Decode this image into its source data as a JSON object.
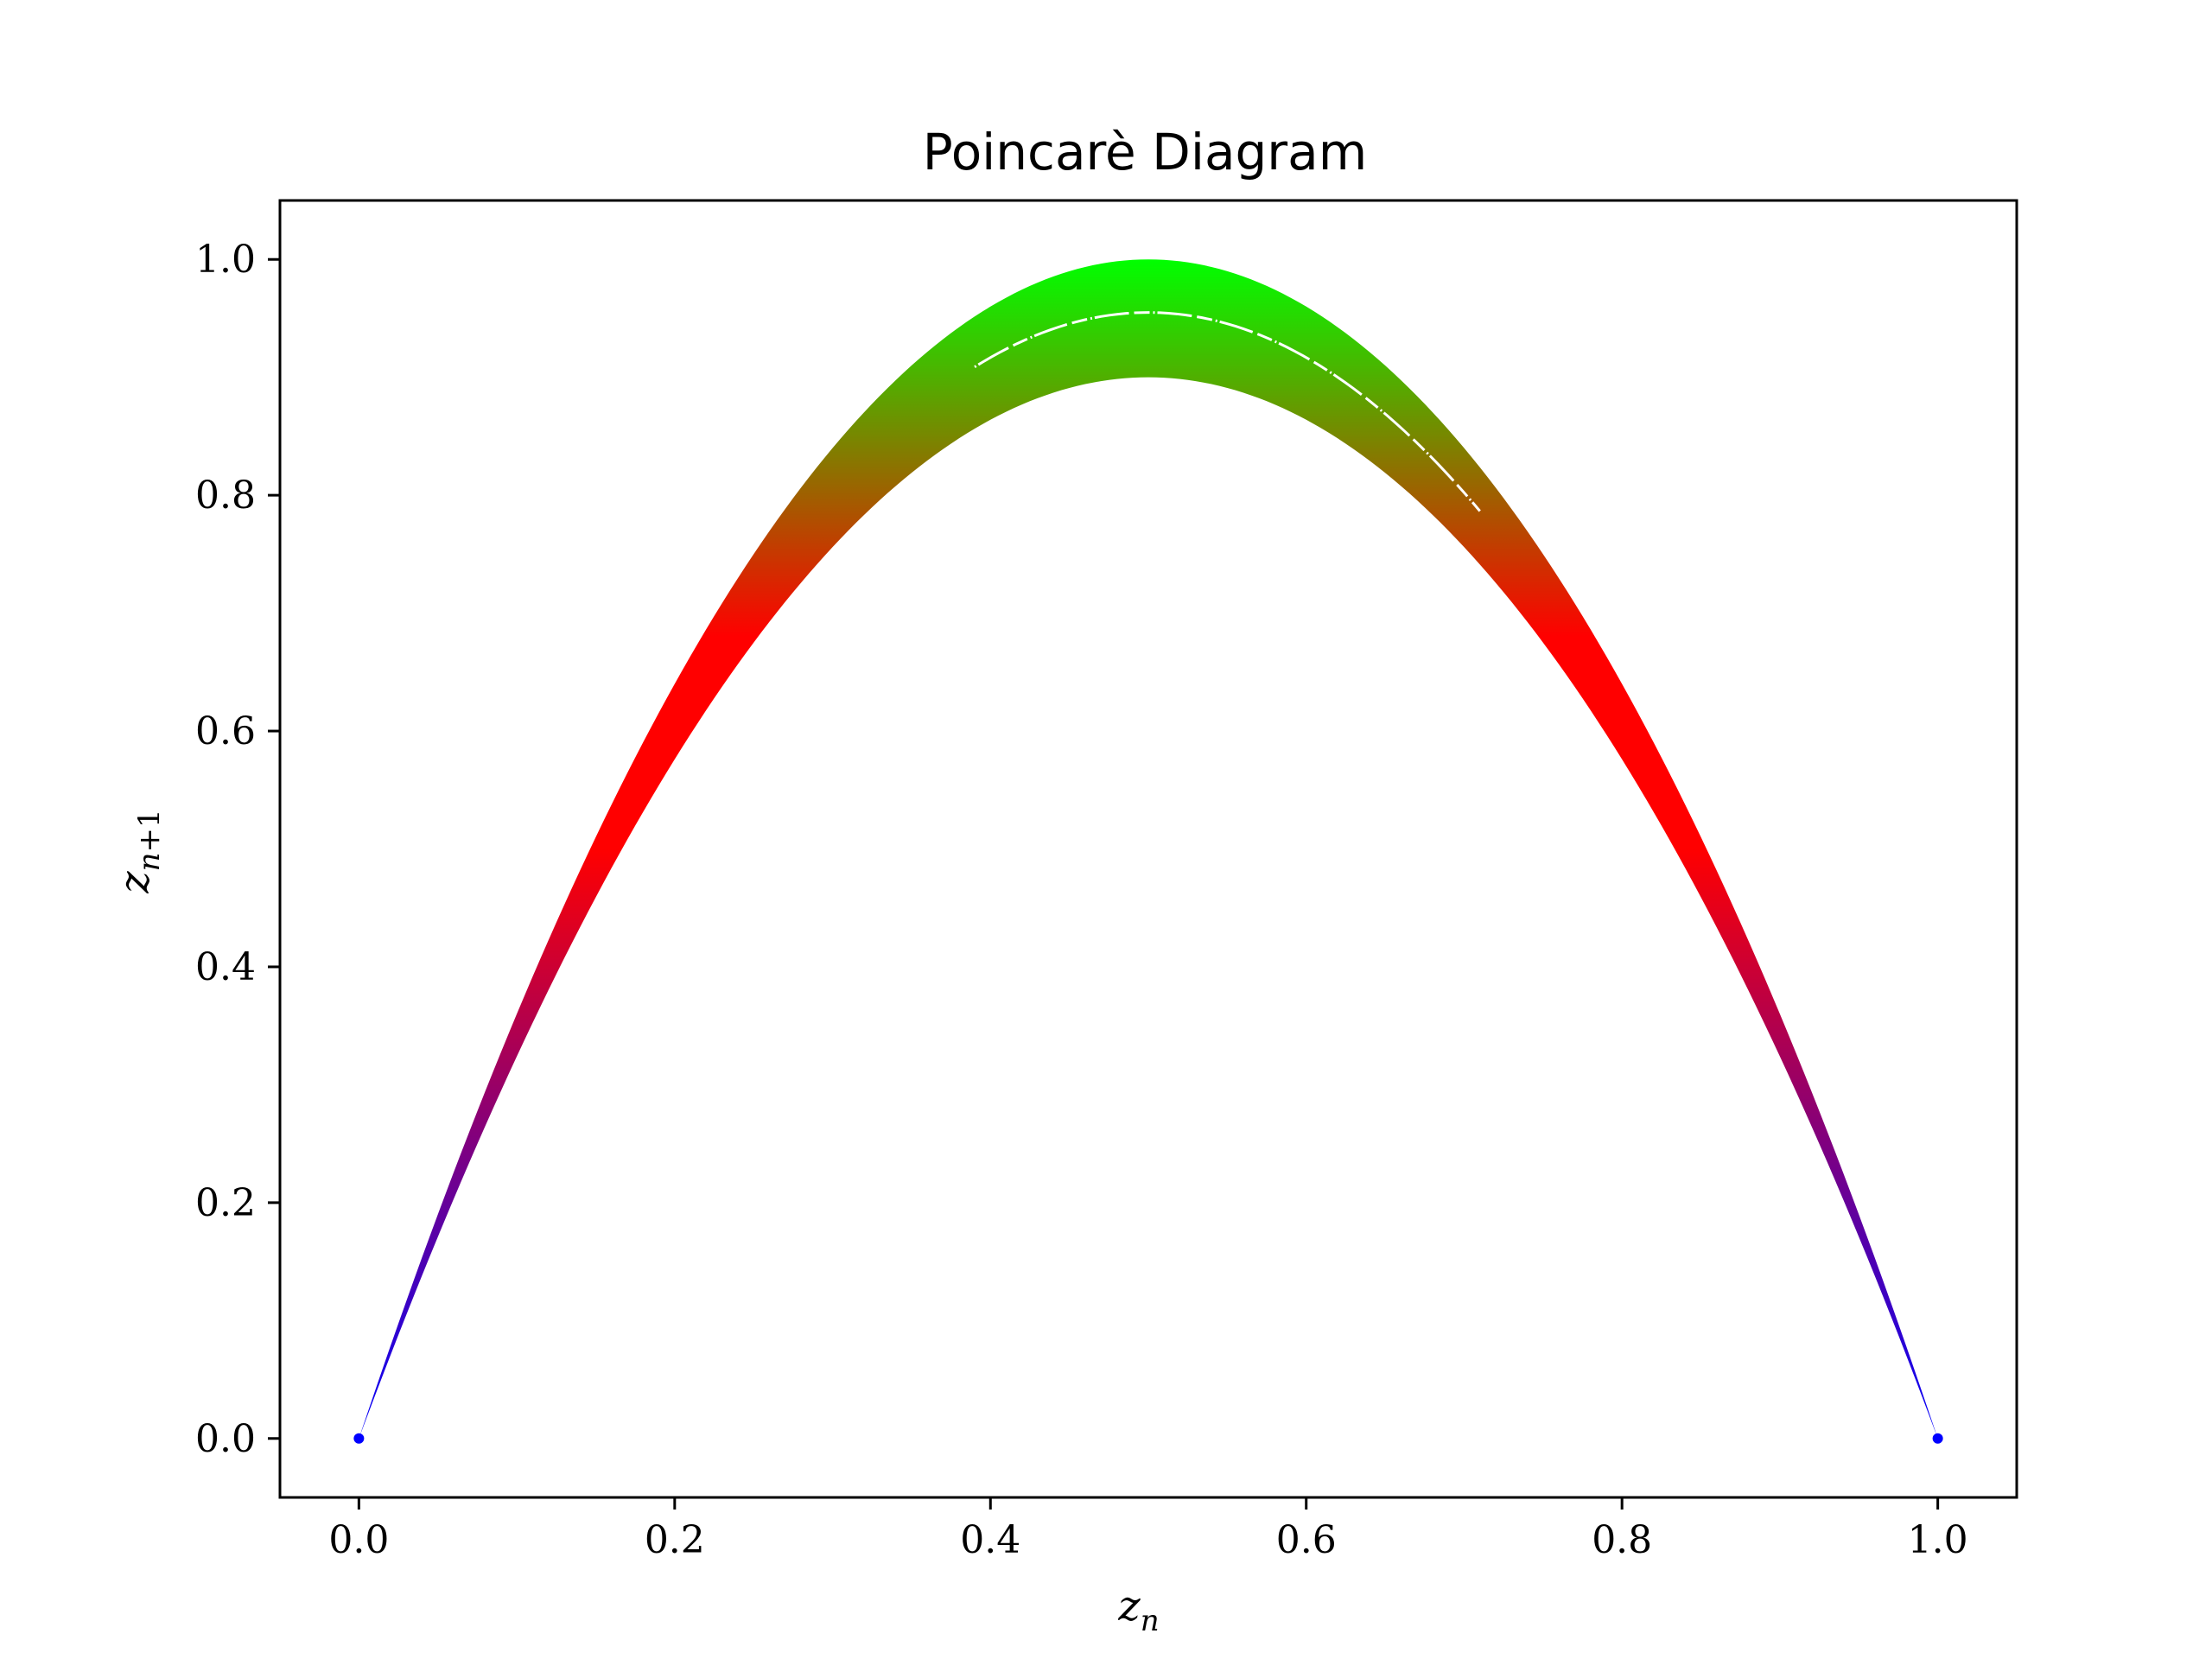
{
  "chart_data": {
    "type": "scatter",
    "title": "Poincarè Diagram",
    "xlabel": {
      "base": "z",
      "sub": "n"
    },
    "ylabel": {
      "base": "z",
      "sub_var": "n",
      "sub_rest": "+1"
    },
    "xlim": [
      -0.05,
      1.05
    ],
    "ylim": [
      -0.05,
      1.05
    ],
    "xticks": [
      0.0,
      0.2,
      0.4,
      0.6,
      0.8,
      1.0
    ],
    "yticks": [
      0.0,
      0.2,
      0.4,
      0.6,
      0.8,
      1.0
    ],
    "xtick_labels": [
      "0.0",
      "0.2",
      "0.4",
      "0.6",
      "0.8",
      "1.0"
    ],
    "ytick_labels": [
      "0.0",
      "0.2",
      "0.4",
      "0.6",
      "0.8",
      "1.0"
    ],
    "grid": false,
    "legend": "none",
    "band": {
      "description": "logistic-map return points z_{n+1} = r z_n (1 - z_n); band between r = 3.6 and r = 4.0",
      "r_min": 3.6,
      "r_max": 4.0,
      "inner_gap_r": 3.82,
      "x": [
        0.0,
        0.05,
        0.1,
        0.15,
        0.2,
        0.25,
        0.3,
        0.35,
        0.4,
        0.45,
        0.5,
        0.55,
        0.6,
        0.65,
        0.7,
        0.75,
        0.8,
        0.85,
        0.9,
        0.95,
        1.0
      ],
      "y_lower": [
        0.0,
        0.171,
        0.324,
        0.459,
        0.576,
        0.675,
        0.756,
        0.819,
        0.864,
        0.891,
        0.9,
        0.891,
        0.864,
        0.819,
        0.756,
        0.675,
        0.576,
        0.459,
        0.324,
        0.171,
        0.0
      ],
      "y_upper": [
        0.0,
        0.19,
        0.36,
        0.51,
        0.64,
        0.75,
        0.84,
        0.91,
        0.96,
        0.99,
        1.0,
        0.99,
        0.96,
        0.91,
        0.84,
        0.75,
        0.64,
        0.51,
        0.36,
        0.19,
        0.0
      ]
    },
    "colors": {
      "low": "#0000ff",
      "mid": "#ff0000",
      "high": "#00ff00"
    }
  }
}
